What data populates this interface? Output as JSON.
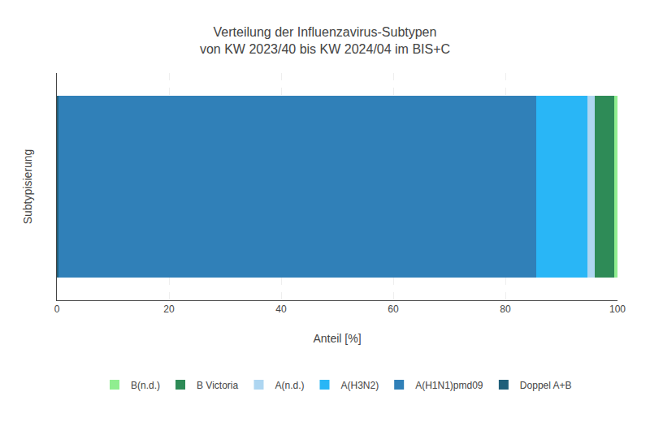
{
  "chart_data": {
    "type": "bar",
    "orientation": "horizontal",
    "stacked": true,
    "title": "Verteilung der Influenzavirus-Subtypen\nvon KW 2023/40 bis KW 2024/04 im BIS+C",
    "xlabel": "Anteil [%]",
    "ylabel": "Subtypisierung",
    "categories": [
      null
    ],
    "series": [
      {
        "name": "Doppel A+B",
        "color": "#1f5f7a",
        "values": [
          0.3
        ]
      },
      {
        "name": "A(H1N1)pmd09",
        "color": "#3080b8",
        "values": [
          85.2
        ]
      },
      {
        "name": "A(H3N2)",
        "color": "#29b6f6",
        "values": [
          9.1
        ]
      },
      {
        "name": "A(n.d.)",
        "color": "#aed6f1",
        "values": [
          1.3
        ]
      },
      {
        "name": "B Victoria",
        "color": "#2e8b57",
        "values": [
          3.5
        ]
      },
      {
        "name": "B(n.d.)",
        "color": "#90ee90",
        "values": [
          0.6
        ]
      }
    ],
    "xlim": [
      0,
      100
    ],
    "xticks": [
      0,
      20,
      40,
      60,
      80,
      100
    ],
    "grid": true,
    "legend": "bottom",
    "tick_labels": "x"
  }
}
